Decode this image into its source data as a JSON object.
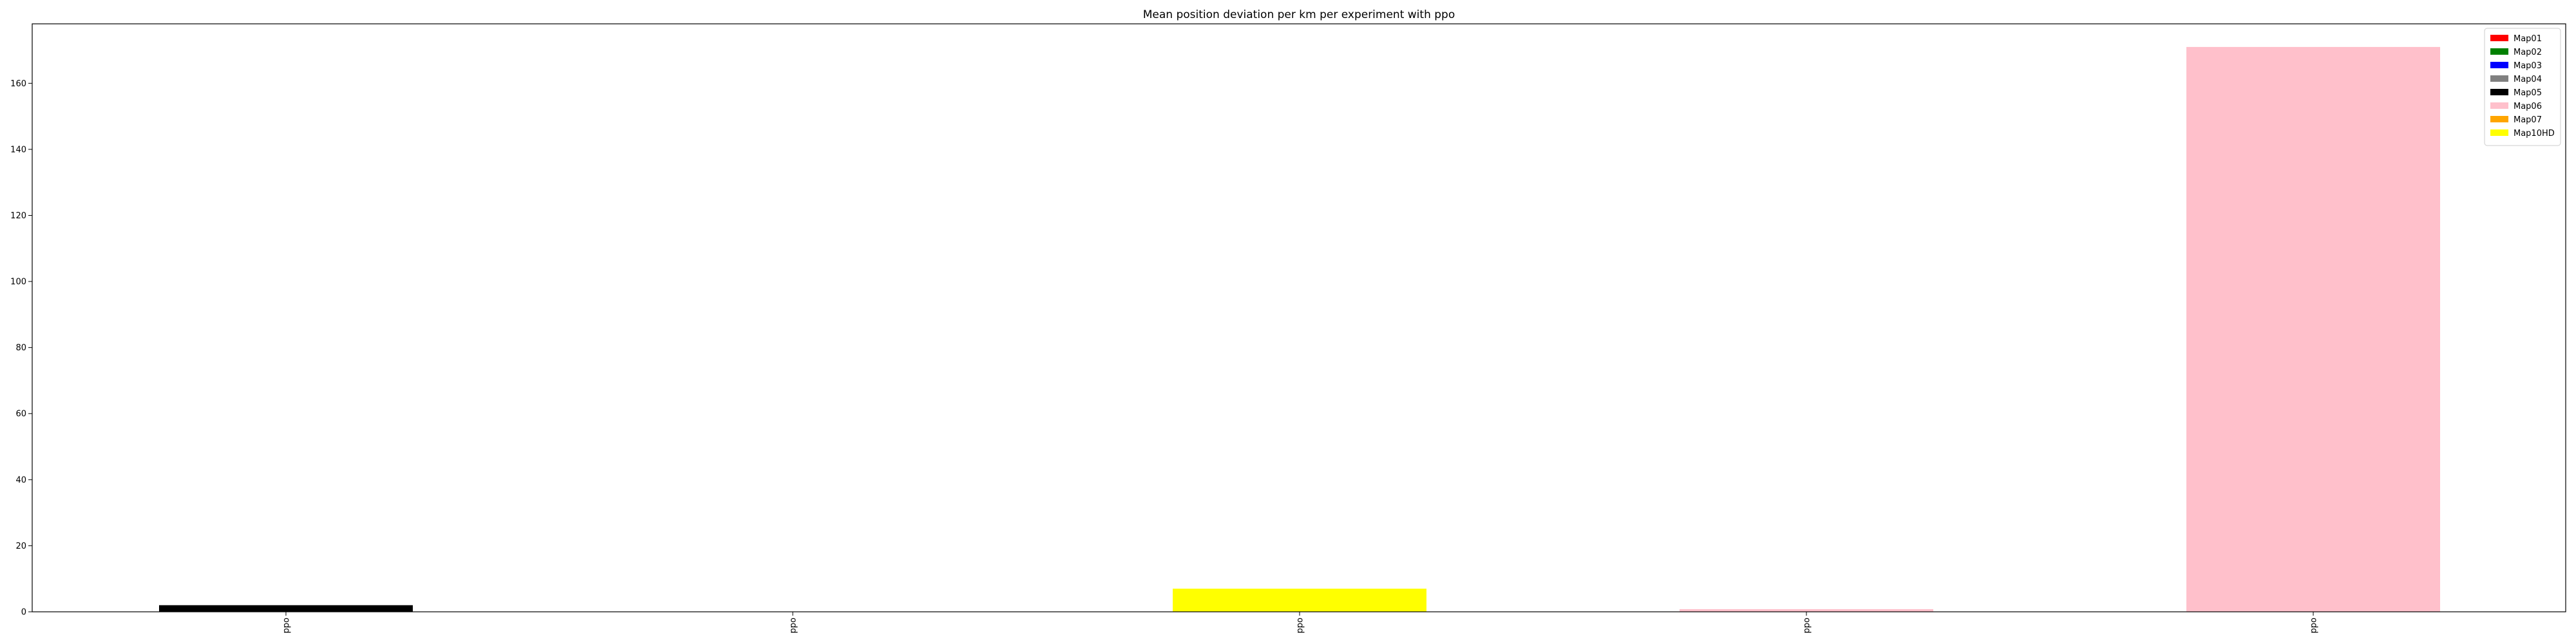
{
  "chart_data": {
    "type": "bar",
    "title": "Mean position deviation per km per experiment with ppo",
    "xlabel": "",
    "ylabel": "",
    "categories": [
      "ppo",
      "ppo",
      "ppo",
      "ppo",
      "ppo"
    ],
    "ylim": [
      0,
      178
    ],
    "yticks": [
      0,
      20,
      40,
      60,
      80,
      100,
      120,
      140,
      160
    ],
    "grid": false,
    "legend_position": "top-right",
    "bars": [
      {
        "category_index": 0,
        "series": "Map05",
        "value": 2.0
      },
      {
        "category_index": 2,
        "series": "Map10HD",
        "value": 7.0
      },
      {
        "category_index": 3,
        "series": "Map06",
        "value": 0.8
      },
      {
        "category_index": 4,
        "series": "Map06",
        "value": 171.0
      }
    ],
    "legend": [
      {
        "name": "Map01",
        "color": "#ff0000"
      },
      {
        "name": "Map02",
        "color": "#008000"
      },
      {
        "name": "Map03",
        "color": "#0000ff"
      },
      {
        "name": "Map04",
        "color": "#808080"
      },
      {
        "name": "Map05",
        "color": "#000000"
      },
      {
        "name": "Map06",
        "color": "#ffc0cb"
      },
      {
        "name": "Map07",
        "color": "#ffa500"
      },
      {
        "name": "Map10HD",
        "color": "#ffff00"
      }
    ]
  }
}
